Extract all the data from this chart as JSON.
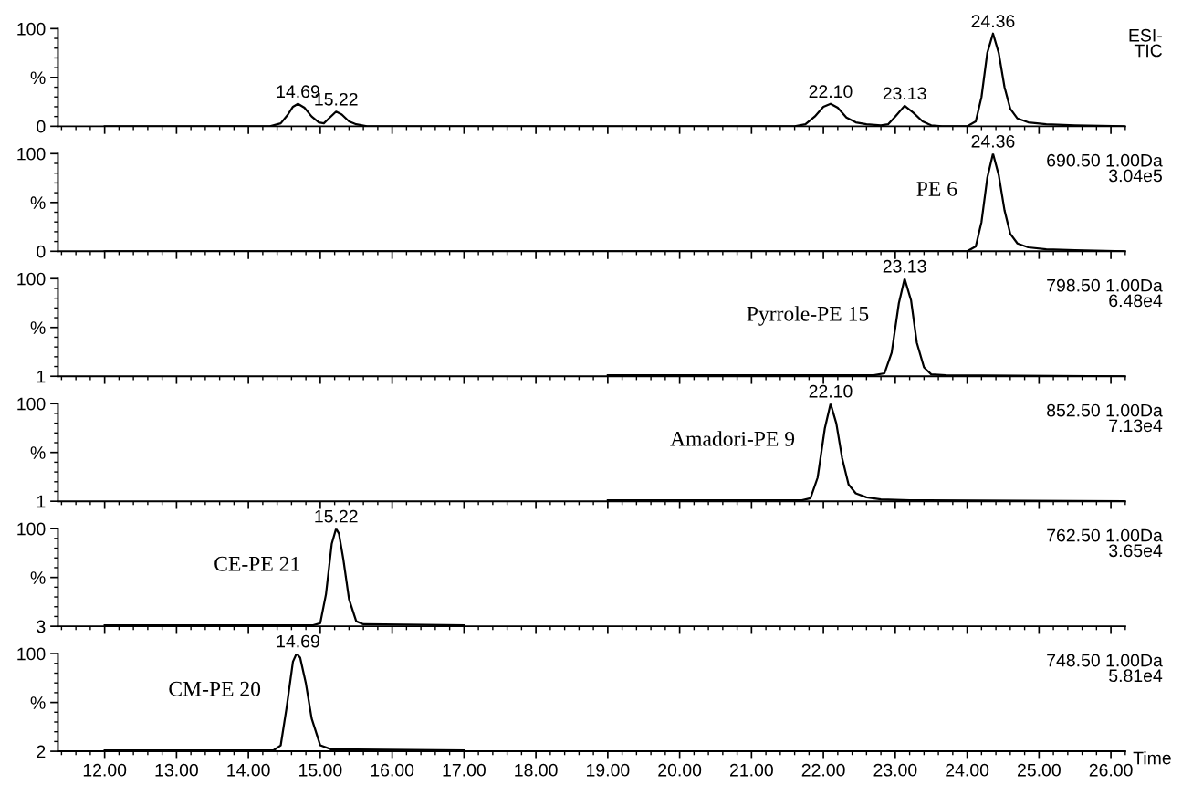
{
  "chart_data": [
    {
      "type": "line",
      "xlim": [
        11.35,
        26.2
      ],
      "xticks": [
        {
          "value": 12,
          "label": null
        },
        {
          "value": 13,
          "label": null
        },
        {
          "value": 14,
          "label": null
        },
        {
          "value": 15,
          "label": null
        },
        {
          "value": 16,
          "label": null
        },
        {
          "value": 17,
          "label": null
        },
        {
          "value": 18,
          "label": null
        },
        {
          "value": 19,
          "label": null
        },
        {
          "value": 20,
          "label": null
        },
        {
          "value": 21,
          "label": null
        },
        {
          "value": 22,
          "label": null
        },
        {
          "value": 23,
          "label": null
        },
        {
          "value": 24,
          "label": null
        },
        {
          "value": 25,
          "label": null
        },
        {
          "value": 26,
          "label": null
        }
      ],
      "ylim": [
        0,
        100
      ],
      "yticks": [
        0,
        {
          "value": 50,
          "label": "%"
        },
        100
      ],
      "tick_labels": "y",
      "series": [
        {
          "color": "#000000",
          "x": [
            12.0,
            14.3,
            14.45,
            14.55,
            14.62,
            14.69,
            14.78,
            14.88,
            14.98,
            15.05,
            15.12,
            15.22,
            15.3,
            15.4,
            15.5,
            15.65,
            21.6,
            21.75,
            21.88,
            22.0,
            22.1,
            22.2,
            22.32,
            22.45,
            22.6,
            22.8,
            22.9,
            23.0,
            23.13,
            23.25,
            23.38,
            23.5,
            23.65,
            24.0,
            24.12,
            24.2,
            24.28,
            24.36,
            24.44,
            24.52,
            24.6,
            24.7,
            24.85,
            25.1,
            25.5,
            26.2
          ],
          "values": [
            0,
            0,
            3,
            12,
            20,
            23,
            19,
            10,
            4,
            3,
            8,
            15,
            12,
            5,
            2,
            0,
            0,
            2,
            10,
            20,
            23,
            19,
            9,
            4,
            2,
            1,
            2,
            10,
            21,
            14,
            5,
            1,
            0,
            0,
            5,
            30,
            75,
            95,
            75,
            40,
            18,
            8,
            4,
            2,
            1,
            0
          ]
        }
      ],
      "annotations": [
        {
          "text": "14.69",
          "x": 14.69,
          "y": 23
        },
        {
          "text": "15.22",
          "x": 15.22,
          "y": 15
        },
        {
          "text": "22.10",
          "x": 22.1,
          "y": 23
        },
        {
          "text": "23.13",
          "x": 23.13,
          "y": 21
        },
        {
          "text": "24.36",
          "x": 24.36,
          "y": 95
        },
        "ESI-\nTIC"
      ]
    },
    {
      "type": "line",
      "xlim": [
        11.35,
        26.2
      ],
      "xticks": [
        {
          "value": 12,
          "label": null
        },
        {
          "value": 13,
          "label": null
        },
        {
          "value": 14,
          "label": null
        },
        {
          "value": 15,
          "label": null
        },
        {
          "value": 16,
          "label": null
        },
        {
          "value": 17,
          "label": null
        },
        {
          "value": 18,
          "label": null
        },
        {
          "value": 19,
          "label": null
        },
        {
          "value": 20,
          "label": null
        },
        {
          "value": 21,
          "label": null
        },
        {
          "value": 22,
          "label": null
        },
        {
          "value": 23,
          "label": null
        },
        {
          "value": 24,
          "label": null
        },
        {
          "value": 25,
          "label": null
        },
        {
          "value": 26,
          "label": null
        }
      ],
      "ylim": [
        0,
        100
      ],
      "yticks": [
        0,
        {
          "value": 50,
          "label": "%"
        },
        100
      ],
      "tick_labels": "y",
      "series": [
        {
          "name": "PE 6",
          "color": "#000000",
          "x": [
            12.0,
            24.0,
            24.12,
            24.2,
            24.28,
            24.36,
            24.44,
            24.52,
            24.6,
            24.7,
            24.85,
            25.1,
            25.5,
            26.2
          ],
          "values": [
            0,
            0,
            5,
            30,
            75,
            100,
            78,
            42,
            18,
            8,
            4,
            2,
            1,
            0
          ]
        }
      ],
      "annotations": [
        {
          "text": "24.36",
          "x": 24.36,
          "y": 100
        },
        "690.50 1.00Da\n3.04e5"
      ]
    },
    {
      "type": "line",
      "xlim": [
        11.35,
        26.2
      ],
      "xticks": [
        {
          "value": 12,
          "label": null
        },
        {
          "value": 13,
          "label": null
        },
        {
          "value": 14,
          "label": null
        },
        {
          "value": 15,
          "label": null
        },
        {
          "value": 16,
          "label": null
        },
        {
          "value": 17,
          "label": null
        },
        {
          "value": 18,
          "label": null
        },
        {
          "value": 19,
          "label": null
        },
        {
          "value": 20,
          "label": null
        },
        {
          "value": 21,
          "label": null
        },
        {
          "value": 22,
          "label": null
        },
        {
          "value": 23,
          "label": null
        },
        {
          "value": 24,
          "label": null
        },
        {
          "value": 25,
          "label": null
        },
        {
          "value": 26,
          "label": null
        }
      ],
      "ylim": [
        1,
        100
      ],
      "yticks": [
        1,
        {
          "value": 50.5,
          "label": "%"
        },
        100
      ],
      "tick_labels": "y",
      "series": [
        {
          "name": "Pyrrole-PE 15",
          "color": "#000000",
          "x": [
            19.0,
            22.7,
            22.85,
            22.95,
            23.05,
            23.13,
            23.22,
            23.3,
            23.4,
            23.5,
            23.7,
            26.2
          ],
          "values": [
            2,
            2,
            4,
            25,
            75,
            100,
            78,
            35,
            10,
            3,
            2,
            1
          ]
        }
      ],
      "annotations": [
        {
          "text": "23.13",
          "x": 23.13,
          "y": 100
        },
        "798.50 1.00Da\n6.48e4"
      ]
    },
    {
      "type": "line",
      "xlim": [
        11.35,
        26.2
      ],
      "xticks": [
        {
          "value": 12,
          "label": null
        },
        {
          "value": 13,
          "label": null
        },
        {
          "value": 14,
          "label": null
        },
        {
          "value": 15,
          "label": null
        },
        {
          "value": 16,
          "label": null
        },
        {
          "value": 17,
          "label": null
        },
        {
          "value": 18,
          "label": null
        },
        {
          "value": 19,
          "label": null
        },
        {
          "value": 20,
          "label": null
        },
        {
          "value": 21,
          "label": null
        },
        {
          "value": 22,
          "label": null
        },
        {
          "value": 23,
          "label": null
        },
        {
          "value": 24,
          "label": null
        },
        {
          "value": 25,
          "label": null
        },
        {
          "value": 26,
          "label": null
        }
      ],
      "ylim": [
        1,
        100
      ],
      "yticks": [
        1,
        {
          "value": 50.5,
          "label": "%"
        },
        100
      ],
      "tick_labels": "y",
      "series": [
        {
          "name": "Amadori-PE 9",
          "color": "#000000",
          "x": [
            19.0,
            21.7,
            21.82,
            21.92,
            22.02,
            22.1,
            22.18,
            22.26,
            22.35,
            22.45,
            22.6,
            22.8,
            23.2,
            26.2
          ],
          "values": [
            2,
            2,
            4,
            25,
            75,
            100,
            80,
            45,
            18,
            9,
            5,
            3,
            2,
            1
          ]
        }
      ],
      "annotations": [
        {
          "text": "22.10",
          "x": 22.1,
          "y": 100
        },
        "852.50 1.00Da\n7.13e4"
      ]
    },
    {
      "type": "line",
      "xlim": [
        11.35,
        26.2
      ],
      "xticks": [
        {
          "value": 12,
          "label": null
        },
        {
          "value": 13,
          "label": null
        },
        {
          "value": 14,
          "label": null
        },
        {
          "value": 15,
          "label": null
        },
        {
          "value": 16,
          "label": null
        },
        {
          "value": 17,
          "label": null
        },
        {
          "value": 18,
          "label": null
        },
        {
          "value": 19,
          "label": null
        },
        {
          "value": 20,
          "label": null
        },
        {
          "value": 21,
          "label": null
        },
        {
          "value": 22,
          "label": null
        },
        {
          "value": 23,
          "label": null
        },
        {
          "value": 24,
          "label": null
        },
        {
          "value": 25,
          "label": null
        },
        {
          "value": 26,
          "label": null
        }
      ],
      "ylim": [
        3,
        100
      ],
      "yticks": [
        3,
        {
          "value": 51.5,
          "label": "%"
        },
        100
      ],
      "tick_labels": "y",
      "series": [
        {
          "name": "CE-PE 21",
          "color": "#000000",
          "x": [
            12.0,
            14.9,
            15.0,
            15.08,
            15.16,
            15.22,
            15.26,
            15.32,
            15.4,
            15.5,
            15.6,
            17.0
          ],
          "values": [
            4,
            4,
            6,
            35,
            85,
            100,
            95,
            70,
            30,
            8,
            5,
            4
          ]
        }
      ],
      "annotations": [
        {
          "text": "15.22",
          "x": 15.22,
          "y": 100
        },
        "762.50 1.00Da\n3.65e4"
      ]
    },
    {
      "type": "line",
      "xlim": [
        11.35,
        26.2
      ],
      "xticks": [
        {
          "value": 12,
          "label": "12.00"
        },
        {
          "value": 13,
          "label": "13.00"
        },
        {
          "value": 14,
          "label": "14.00"
        },
        {
          "value": 15,
          "label": "15.00"
        },
        {
          "value": 16,
          "label": "16.00"
        },
        {
          "value": 17,
          "label": "17.00"
        },
        {
          "value": 18,
          "label": "18.00"
        },
        {
          "value": 19,
          "label": "19.00"
        },
        {
          "value": 20,
          "label": "20.00"
        },
        {
          "value": 21,
          "label": "21.00"
        },
        {
          "value": 22,
          "label": "22.00"
        },
        {
          "value": 23,
          "label": "23.00"
        },
        {
          "value": 24,
          "label": "24.00"
        },
        {
          "value": 25,
          "label": "25.00"
        },
        {
          "value": 26,
          "label": "26.00"
        }
      ],
      "ylim": [
        2,
        100
      ],
      "yticks": [
        2,
        {
          "value": 51,
          "label": "%"
        },
        100
      ],
      "xlabel": "Time",
      "series": [
        {
          "name": "CM-PE 20",
          "color": "#000000",
          "x": [
            12.0,
            14.35,
            14.45,
            14.53,
            14.62,
            14.67,
            14.72,
            14.8,
            14.88,
            15.0,
            15.15,
            17.0
          ],
          "values": [
            3,
            3,
            8,
            45,
            92,
            100,
            96,
            70,
            35,
            8,
            4,
            3
          ]
        }
      ],
      "annotations": [
        {
          "text": "14.69",
          "x": 14.69,
          "y": 100
        },
        "748.50 1.00Da\n5.81e4"
      ]
    }
  ]
}
